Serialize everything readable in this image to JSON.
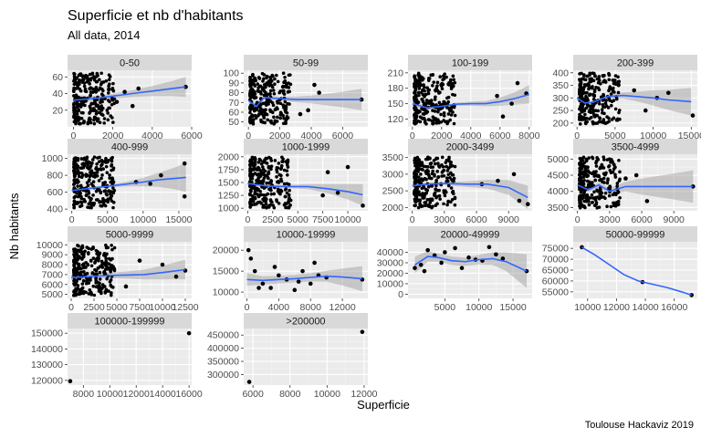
{
  "title": "Superficie et nb d'habitants",
  "subtitle": "All data, 2014",
  "xlabel": "Superficie",
  "ylabel": "Nb habitants",
  "caption": "Toulouse Hackaviz 2019",
  "colors": {
    "panel_bg": "#ebebeb",
    "strip_bg": "#d9d9d9",
    "grid_major": "#ffffff",
    "point": "#000000",
    "smooth_line": "#3366ff",
    "ribbon": "#999999"
  },
  "chart_data": [
    {
      "type": "scatter",
      "facet": "0-50",
      "x_range": [
        -300,
        6000
      ],
      "y_range": [
        0,
        68
      ],
      "x_ticks": [
        0,
        2000,
        4000,
        6000
      ],
      "x_tick_labels": [
        "0",
        "2000",
        "4000",
        "6000"
      ],
      "y_ticks": [
        20,
        40,
        60
      ],
      "y_tick_labels": [
        "20",
        "40",
        "60"
      ],
      "points": [
        [
          5700,
          48
        ],
        [
          3300,
          46
        ],
        [
          2600,
          42
        ],
        [
          2200,
          30
        ],
        [
          3000,
          25
        ],
        [
          1800,
          45
        ]
      ],
      "smooth": [
        [
          0,
          32
        ],
        [
          1000,
          34
        ],
        [
          2000,
          37
        ],
        [
          3000,
          40
        ],
        [
          4000,
          43
        ],
        [
          5000,
          46
        ],
        [
          5700,
          48
        ]
      ],
      "ribbon_hw": [
        6,
        3,
        3,
        4,
        6,
        9,
        12
      ]
    },
    {
      "type": "scatter",
      "facet": "50-99",
      "x_range": [
        -300,
        7600
      ],
      "y_range": [
        45,
        103
      ],
      "x_ticks": [
        0,
        2000,
        4000,
        6000
      ],
      "x_tick_labels": [
        "0",
        "2000",
        "4000",
        "6000"
      ],
      "y_ticks": [
        50,
        60,
        70,
        80,
        90,
        100
      ],
      "y_tick_labels": [
        "50",
        "60",
        "70",
        "80",
        "90",
        "100"
      ],
      "points": [
        [
          7200,
          73
        ],
        [
          4500,
          80
        ],
        [
          3800,
          62
        ],
        [
          3300,
          58
        ],
        [
          4200,
          88
        ]
      ],
      "smooth": [
        [
          0,
          72
        ],
        [
          500,
          66
        ],
        [
          1000,
          75
        ],
        [
          2000,
          74
        ],
        [
          3000,
          73
        ],
        [
          4000,
          73
        ],
        [
          5000,
          73
        ],
        [
          6000,
          73
        ],
        [
          7200,
          73
        ]
      ],
      "ribbon_hw": [
        4,
        3,
        2,
        2,
        3,
        4,
        6,
        8,
        11
      ]
    },
    {
      "type": "scatter",
      "facet": "100-199",
      "x_range": [
        -300,
        8200
      ],
      "y_range": [
        105,
        215
      ],
      "x_ticks": [
        0,
        2000,
        4000,
        6000,
        8000
      ],
      "x_tick_labels": [
        "0",
        "2000",
        "4000",
        "6000",
        "8000"
      ],
      "y_ticks": [
        120,
        150,
        180,
        210
      ],
      "y_tick_labels": [
        "120",
        "150",
        "180",
        "210"
      ],
      "points": [
        [
          7800,
          170
        ],
        [
          6800,
          150
        ],
        [
          6200,
          125
        ],
        [
          5800,
          165
        ],
        [
          7200,
          190
        ]
      ],
      "smooth": [
        [
          0,
          150
        ],
        [
          1000,
          142
        ],
        [
          2000,
          145
        ],
        [
          3000,
          149
        ],
        [
          4000,
          150
        ],
        [
          5000,
          150
        ],
        [
          6000,
          154
        ],
        [
          7000,
          160
        ],
        [
          8000,
          168
        ]
      ],
      "ribbon_hw": [
        6,
        4,
        3,
        3,
        4,
        5,
        8,
        12,
        18
      ]
    },
    {
      "type": "scatter",
      "facet": "200-399",
      "x_range": [
        -500,
        15800
      ],
      "y_range": [
        185,
        410
      ],
      "x_ticks": [
        0,
        5000,
        10000,
        15000
      ],
      "x_tick_labels": [
        "0",
        "5000",
        "10000",
        "15000"
      ],
      "y_ticks": [
        200,
        250,
        300,
        350,
        400
      ],
      "y_tick_labels": [
        "200",
        "250",
        "300",
        "350",
        "400"
      ],
      "points": [
        [
          15200,
          230
        ],
        [
          10500,
          300
        ],
        [
          9000,
          250
        ],
        [
          12000,
          320
        ],
        [
          7500,
          330
        ]
      ],
      "smooth": [
        [
          0,
          300
        ],
        [
          1000,
          280
        ],
        [
          2000,
          282
        ],
        [
          4000,
          305
        ],
        [
          6000,
          310
        ],
        [
          8000,
          305
        ],
        [
          10000,
          300
        ],
        [
          12000,
          292
        ],
        [
          15000,
          285
        ]
      ],
      "ribbon_hw": [
        10,
        8,
        6,
        8,
        12,
        20,
        30,
        40,
        55
      ]
    },
    {
      "type": "scatter",
      "facet": "400-999",
      "x_range": [
        -600,
        16800
      ],
      "y_range": [
        380,
        1050
      ],
      "x_ticks": [
        0,
        5000,
        10000,
        15000
      ],
      "x_tick_labels": [
        "0",
        "5000",
        "10000",
        "15000"
      ],
      "y_ticks": [
        400,
        600,
        800,
        1000
      ],
      "y_tick_labels": [
        "400",
        "600",
        "800",
        "1000"
      ],
      "points": [
        [
          15800,
          940
        ],
        [
          15800,
          550
        ],
        [
          9000,
          720
        ],
        [
          11000,
          700
        ],
        [
          12500,
          800
        ]
      ],
      "smooth": [
        [
          0,
          620
        ],
        [
          2000,
          640
        ],
        [
          4000,
          660
        ],
        [
          6000,
          680
        ],
        [
          8000,
          700
        ],
        [
          10000,
          720
        ],
        [
          12000,
          745
        ],
        [
          14000,
          760
        ],
        [
          16000,
          775
        ]
      ],
      "ribbon_hw": [
        20,
        15,
        15,
        20,
        30,
        50,
        80,
        120,
        170
      ]
    },
    {
      "type": "scatter",
      "facet": "1000-1999",
      "x_range": [
        -400,
        12000
      ],
      "y_range": [
        950,
        2050
      ],
      "x_ticks": [
        0,
        2500,
        5000,
        7500,
        10000
      ],
      "x_tick_labels": [
        "0",
        "2500",
        "5000",
        "7500",
        "10000"
      ],
      "y_ticks": [
        1000,
        1250,
        1500,
        1750,
        2000
      ],
      "y_tick_labels": [
        "1000",
        "1250",
        "1500",
        "1750",
        "2000"
      ],
      "points": [
        [
          11500,
          1050
        ],
        [
          10000,
          1800
        ],
        [
          9000,
          1300
        ],
        [
          8000,
          1700
        ],
        [
          7500,
          1250
        ]
      ],
      "smooth": [
        [
          0,
          1480
        ],
        [
          2000,
          1430
        ],
        [
          4000,
          1420
        ],
        [
          6000,
          1420
        ],
        [
          8000,
          1380
        ],
        [
          10000,
          1320
        ],
        [
          11500,
          1260
        ]
      ],
      "ribbon_hw": [
        40,
        30,
        30,
        50,
        90,
        150,
        210
      ]
    },
    {
      "type": "scatter",
      "facet": "2000-3499",
      "x_range": [
        -400,
        11200
      ],
      "y_range": [
        1900,
        3600
      ],
      "x_ticks": [
        0,
        3000,
        6000,
        9000
      ],
      "x_tick_labels": [
        "0",
        "3000",
        "6000",
        "9000"
      ],
      "y_ticks": [
        2000,
        2500,
        3000,
        3500
      ],
      "y_tick_labels": [
        "2000",
        "2500",
        "3000",
        "3500"
      ],
      "points": [
        [
          10800,
          2100
        ],
        [
          10000,
          2200
        ],
        [
          9500,
          3000
        ],
        [
          8000,
          2800
        ],
        [
          6500,
          2700
        ]
      ],
      "smooth": [
        [
          0,
          2650
        ],
        [
          1500,
          2700
        ],
        [
          3000,
          2720
        ],
        [
          5000,
          2700
        ],
        [
          7000,
          2700
        ],
        [
          9000,
          2600
        ],
        [
          10800,
          2300
        ]
      ],
      "ribbon_hw": [
        60,
        50,
        50,
        80,
        130,
        220,
        350
      ]
    },
    {
      "type": "scatter",
      "facet": "3500-4999",
      "x_range": [
        -400,
        11200
      ],
      "y_range": [
        3400,
        5150
      ],
      "x_ticks": [
        0,
        3000,
        6000,
        9000
      ],
      "x_tick_labels": [
        "0",
        "3000",
        "6000",
        "9000"
      ],
      "y_ticks": [
        3500,
        4000,
        4500,
        5000
      ],
      "y_tick_labels": [
        "3500",
        "4000",
        "4500",
        "5000"
      ],
      "points": [
        [
          10800,
          4150
        ],
        [
          6500,
          3700
        ],
        [
          5500,
          4500
        ],
        [
          4500,
          4400
        ],
        [
          3800,
          3600
        ]
      ],
      "smooth": [
        [
          0,
          4200
        ],
        [
          1000,
          4050
        ],
        [
          2000,
          4200
        ],
        [
          3000,
          4000
        ],
        [
          4500,
          4150
        ],
        [
          6000,
          4150
        ],
        [
          8000,
          4150
        ],
        [
          10800,
          4150
        ]
      ],
      "ribbon_hw": [
        100,
        80,
        80,
        100,
        150,
        250,
        350,
        500
      ]
    },
    {
      "type": "scatter",
      "facet": "5000-9999",
      "x_range": [
        -400,
        13200
      ],
      "y_range": [
        4600,
        10300
      ],
      "x_ticks": [
        0,
        2500,
        5000,
        7500,
        10000,
        12500
      ],
      "x_tick_labels": [
        "0",
        "2500",
        "5000",
        "7500",
        "10000",
        "12500"
      ],
      "y_ticks": [
        5000,
        6000,
        7000,
        8000,
        9000,
        10000
      ],
      "y_tick_labels": [
        "5000",
        "6000",
        "7000",
        "8000",
        "9000",
        "10000"
      ],
      "points": [
        [
          12500,
          7400
        ],
        [
          11500,
          6800
        ],
        [
          10000,
          8000
        ],
        [
          7500,
          8400
        ],
        [
          6000,
          5800
        ]
      ],
      "smooth": [
        [
          0,
          6700
        ],
        [
          2000,
          6800
        ],
        [
          4000,
          6900
        ],
        [
          6000,
          6950
        ],
        [
          8000,
          7000
        ],
        [
          10000,
          7200
        ],
        [
          12500,
          7500
        ]
      ],
      "ribbon_hw": [
        300,
        250,
        250,
        350,
        500,
        700,
        1000
      ]
    },
    {
      "type": "scatter",
      "facet": "10000-19999",
      "x_range": [
        -400,
        15200
      ],
      "y_range": [
        8500,
        22000
      ],
      "x_ticks": [
        0,
        4000,
        8000,
        12000
      ],
      "x_tick_labels": [
        "0",
        "4000",
        "8000",
        "12000"
      ],
      "y_ticks": [
        10000,
        15000,
        20000
      ],
      "y_tick_labels": [
        "10000",
        "15000",
        "20000"
      ],
      "points": [
        [
          200,
          20000
        ],
        [
          500,
          18000
        ],
        [
          1000,
          15000
        ],
        [
          2000,
          12000
        ],
        [
          3000,
          11000
        ],
        [
          4000,
          14000
        ],
        [
          5000,
          13000
        ],
        [
          6000,
          10500
        ],
        [
          7000,
          15000
        ],
        [
          8000,
          12000
        ],
        [
          8500,
          17000
        ],
        [
          9000,
          14000
        ],
        [
          10000,
          13500
        ],
        [
          3500,
          16000
        ],
        [
          1500,
          11000
        ],
        [
          6500,
          12500
        ],
        [
          14500,
          13000
        ]
      ],
      "smooth": [
        [
          0,
          13000
        ],
        [
          2000,
          12800
        ],
        [
          4000,
          13000
        ],
        [
          6000,
          13200
        ],
        [
          8000,
          13500
        ],
        [
          10000,
          13800
        ],
        [
          12000,
          13600
        ],
        [
          14500,
          13200
        ]
      ],
      "ribbon_hw": [
        1500,
        1000,
        900,
        900,
        1000,
        1300,
        2000,
        3000
      ]
    },
    {
      "type": "scatter",
      "facet": "20000-49999",
      "x_range": [
        -400,
        17800
      ],
      "y_range": [
        -4000,
        50000
      ],
      "x_ticks": [
        5000,
        10000,
        15000
      ],
      "x_tick_labels": [
        "5000",
        "10000",
        "15000"
      ],
      "y_ticks": [
        0,
        10000,
        20000,
        30000,
        40000
      ],
      "y_tick_labels": [
        "0",
        "10000",
        "20000",
        "30000",
        "40000"
      ],
      "points": [
        [
          600,
          25000
        ],
        [
          1500,
          28000
        ],
        [
          2500,
          42000
        ],
        [
          3500,
          37000
        ],
        [
          4500,
          30000
        ],
        [
          5000,
          40000
        ],
        [
          6500,
          44000
        ],
        [
          7500,
          25000
        ],
        [
          8500,
          35000
        ],
        [
          9500,
          33000
        ],
        [
          10500,
          32000
        ],
        [
          11500,
          45000
        ],
        [
          12500,
          38000
        ],
        [
          2000,
          22000
        ],
        [
          13500,
          34000
        ],
        [
          17000,
          22000
        ]
      ],
      "smooth": [
        [
          600,
          28000
        ],
        [
          2500,
          36000
        ],
        [
          4000,
          35000
        ],
        [
          6000,
          32000
        ],
        [
          8000,
          31000
        ],
        [
          10000,
          33000
        ],
        [
          12000,
          34000
        ],
        [
          14000,
          31000
        ],
        [
          17000,
          22000
        ]
      ],
      "ribbon_hw": [
        8000,
        5000,
        4000,
        4000,
        4000,
        4500,
        6000,
        9000,
        16000
      ]
    },
    {
      "type": "scatter",
      "facet": "50000-99999",
      "x_range": [
        9000,
        17600
      ],
      "y_range": [
        52000,
        78000
      ],
      "x_ticks": [
        10000,
        12000,
        14000,
        16000
      ],
      "x_tick_labels": [
        "10000",
        "12000",
        "14000",
        "16000"
      ],
      "y_ticks": [
        55000,
        60000,
        65000,
        70000,
        75000
      ],
      "y_tick_labels": [
        "55000",
        "60000",
        "65000",
        "70000",
        "75000"
      ],
      "points": [
        [
          9600,
          75500
        ],
        [
          13800,
          59500
        ],
        [
          17200,
          53500
        ]
      ],
      "smooth": [
        [
          9600,
          75500
        ],
        [
          10500,
          72000
        ],
        [
          11500,
          67500
        ],
        [
          12500,
          63000
        ],
        [
          13500,
          60000
        ],
        [
          14500,
          58500
        ],
        [
          15500,
          57000
        ],
        [
          16500,
          55000
        ],
        [
          17200,
          53500
        ]
      ],
      "ribbon_hw": []
    },
    {
      "type": "scatter",
      "facet": "100000-199999",
      "x_range": [
        6800,
        16200
      ],
      "y_range": [
        117000,
        153000
      ],
      "x_ticks": [
        8000,
        10000,
        12000,
        14000,
        16000
      ],
      "x_tick_labels": [
        "8000",
        "10000",
        "12000",
        "14000",
        "16000"
      ],
      "y_ticks": [
        120000,
        130000,
        140000,
        150000
      ],
      "y_tick_labels": [
        "120000",
        "130000",
        "140000",
        "150000"
      ],
      "points": [
        [
          7000,
          119500
        ],
        [
          16000,
          150000
        ]
      ],
      "smooth": [],
      "ribbon_hw": []
    },
    {
      "type": "scatter",
      "facet": ">200000",
      "x_range": [
        5500,
        12200
      ],
      "y_range": [
        260000,
        475000
      ],
      "x_ticks": [
        6000,
        8000,
        10000,
        12000
      ],
      "x_tick_labels": [
        "6000",
        "8000",
        "10000",
        "12000"
      ],
      "y_ticks": [
        300000,
        350000,
        400000,
        450000
      ],
      "y_tick_labels": [
        "300000",
        "350000",
        "400000",
        "450000"
      ],
      "points": [
        [
          5800,
          272000
        ],
        [
          11900,
          462000
        ]
      ],
      "smooth": [],
      "ribbon_hw": []
    }
  ]
}
